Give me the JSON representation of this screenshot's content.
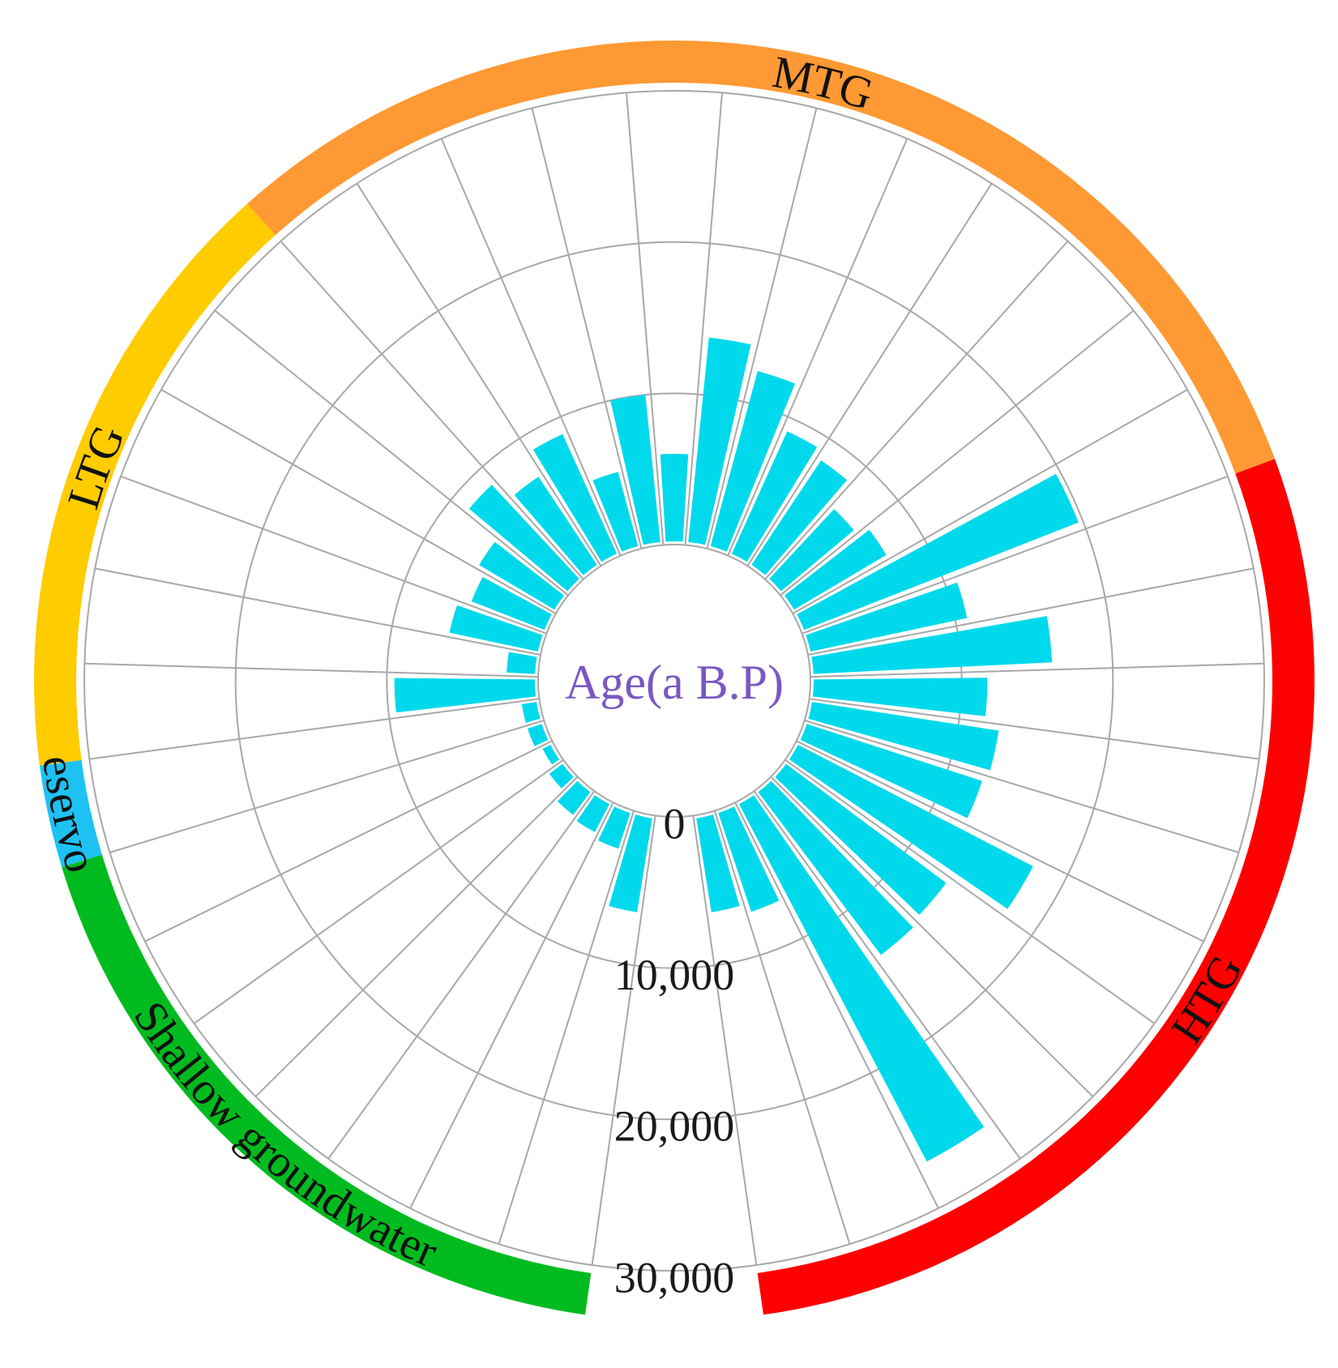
{
  "chart_data": {
    "type": "radial-bar",
    "center_label": "Age(a B.P)",
    "radial_axis": {
      "ticks": [
        0,
        10000,
        20000,
        30000
      ],
      "tick_labels": [
        "0",
        "10,000",
        "20,000",
        "30,000"
      ],
      "max": 30000
    },
    "groups": [
      {
        "name": "Shallow groundwater",
        "color": "#00bb1f",
        "values": [
          6500,
          2700,
          2300,
          2100,
          1300,
          800,
          1200
        ]
      },
      {
        "name": "Reservoir",
        "color": "#1ec2f2",
        "values": [
          1200
        ]
      },
      {
        "name": "LTG",
        "color": "#ffcc00",
        "values": [
          9500,
          2100,
          6200,
          5400,
          6000,
          8700
        ]
      },
      {
        "name": "MTG",
        "color": "#ff9933",
        "values": [
          7200,
          8900,
          5300,
          10000,
          6000,
          13800,
          12200,
          9100,
          8500,
          6500,
          7300,
          19700
        ]
      },
      {
        "name": "HTG",
        "color": "#ff0000",
        "values": [
          10800,
          16000,
          11700,
          12700,
          12400,
          17700,
          13400,
          13700,
          26900,
          7100,
          6500
        ]
      }
    ],
    "bar_color": "#00d9ec",
    "grid": true
  }
}
